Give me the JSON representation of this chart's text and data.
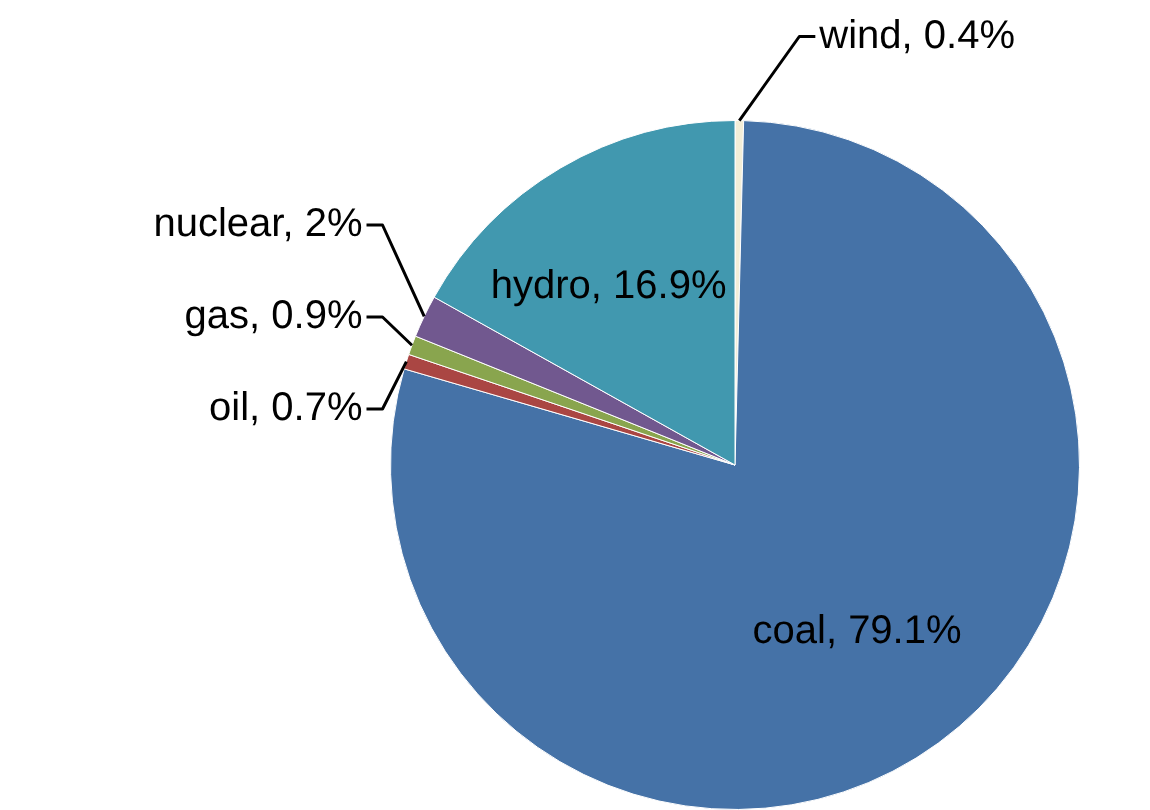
{
  "chart_data": {
    "type": "pie",
    "categories": [
      "wind",
      "coal",
      "oil",
      "gas",
      "nuclear",
      "hydro"
    ],
    "values": [
      0.4,
      79.1,
      0.7,
      0.9,
      2,
      16.9
    ],
    "colors": [
      "#f3eed8",
      "#4572a7",
      "#aa4643",
      "#89a54e",
      "#71588f",
      "#4198af"
    ],
    "value_labels": [
      "0.4%",
      "79.1%",
      "0.7%",
      "0.9%",
      "2%",
      "16.9%"
    ],
    "legend": false
  }
}
